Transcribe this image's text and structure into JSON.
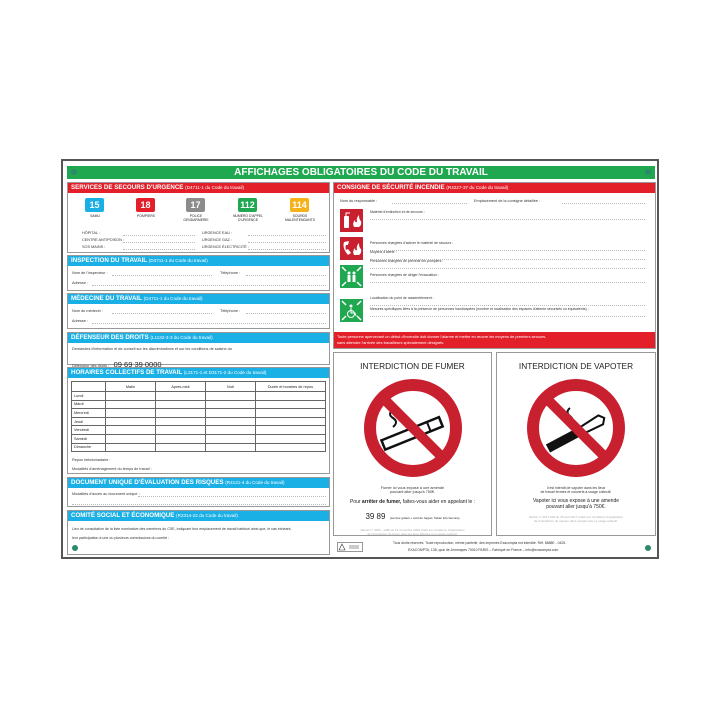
{
  "title": "AFFICHAGES OBLIGATOIRES DU CODE DU TRAVAIL",
  "colors": {
    "green": "#1fa84f",
    "red": "#e3202a",
    "blue": "#1ab0e6",
    "gray": "#8c8c8c",
    "yellow": "#f6b21b",
    "sign_red": "#c8202f"
  },
  "secours": {
    "title": "SERVICES DE SECOURS D'URGENCE",
    "ref": "(D4711-1 du Code du travail)",
    "numbers": [
      {
        "n": "15",
        "label": "SAMU",
        "color": "#1ab0e6"
      },
      {
        "n": "18",
        "label": "POMPIERS",
        "color": "#e3202a"
      },
      {
        "n": "17",
        "label": "POLICE GENDARMERIE",
        "color": "#8c8c8c"
      },
      {
        "n": "112",
        "label": "NUMÉRO D'APPEL D'URGENCE",
        "color": "#1fa84f"
      },
      {
        "n": "114",
        "label": "SOURDS MALENTENDANTS",
        "color": "#f6b21b"
      }
    ],
    "fields_left": [
      "HÔPITAL :",
      "CENTRE ANTIPOISON :",
      "SOS MAINS :"
    ],
    "fields_right": [
      "URGENCE EAU :",
      "URGENCE GAZ :",
      "URGENCE ÉLECTRICITÉ :"
    ]
  },
  "inspection": {
    "title": "INSPECTION DU TRAVAIL",
    "ref": "(D4711-1 du Code du travail)",
    "f1": "Nom de l'inspecteur :",
    "f2": "Téléphone :",
    "f3": "Adresse :"
  },
  "medecine": {
    "title": "MÉDECINE DU TRAVAIL",
    "ref": "(D4711-1 du Code du travail)",
    "f1": "Nom du médecin :",
    "f2": "Téléphone :",
    "f3": "Adresse :"
  },
  "defenseur": {
    "title": "DÉFENSEUR DES DROITS",
    "ref": "(L1132-3-3 du Code du travail)",
    "text": "Demandes d'information et de conseil sur les discriminations et sur les conditions de saisine du",
    "label": "Défenseur des droits :",
    "phone": "09 69 39 0000"
  },
  "horaires": {
    "title": "HORAIRES COLLECTIFS DE TRAVAIL",
    "ref": "(L3171-1 et D3171-2 du Code du travail)",
    "columns": [
      "",
      "Matin",
      "Après-midi",
      "Nuit",
      "Durée et horaires de repos"
    ],
    "days": [
      "Lundi",
      "Mardi",
      "Mercredi",
      "Jeudi",
      "Vendredi",
      "Samedi",
      "Dimanche"
    ],
    "f1": "Repos hebdomadaire :",
    "f2": "Modalités d'aménagement du temps de travail :"
  },
  "duer": {
    "title": "DOCUMENT UNIQUE D'ÉVALUATION DES RISQUES",
    "ref": "(R4121-4 du Code du travail)",
    "f1": "Modalités d'accès au document unique :"
  },
  "cse": {
    "title": "COMITÉ SOCIAL ET ÉCONOMIQUE",
    "ref": "(R2314-22 du Code du travail)",
    "text1": "Lieu de consultation de la liste nominative des membres du CSE, indiquant leur emplacement de travail habituel ainsi que, le cas échéant,",
    "text2": "leur participation à une ou plusieurs commissions du comité :"
  },
  "incendie": {
    "title": "CONSIGNE DE SÉCURITÉ INCENDIE",
    "ref": "(R4227-37 du Code du travail)",
    "f_resp": "Nom du responsable :",
    "f_empl": "Emplacement de la consigne détaillée :",
    "fields": [
      "Matériel d'extinction et de secours :",
      "Personnes chargées d'activer le matériel de secours :",
      "Moyens d'alerte :",
      "Personnes chargées de prévenir les pompiers :",
      "Personnes chargées de diriger l'évacuation :",
      "Localisation du point de rassemblement :",
      "Mesures spécifiques liées à la présence de personnes handicapées (nombre et localisation des espaces d'attente sécurisés ou équivalents) :"
    ],
    "icons": [
      "fire-extinguisher-icon",
      "fire-alarm-phone-icon",
      "assembly-point-icon",
      "disabled-evacuation-icon"
    ],
    "footer1": "Toute personne apercevant un début d'incendie doit donner l'alarme et mettre en œuvre les moyens de premiers secours,",
    "footer2": "sans attendre l'arrivée des travailleurs spécialement désignés."
  },
  "fumer": {
    "title": "INTERDICTION DE FUMER",
    "t1": "Fumer ici vous expose à une amende",
    "t2": "pouvant aller jusqu'à 750€.",
    "t3a": "Pour ",
    "t3b": "arrêter de fumer,",
    "t3c": " faites-vous aider en appelant le :",
    "phone": "39 89",
    "phone_note": "(service gratuit + coût de l'appel, Tabac Info Service)",
    "legal1": "Décret n° 2006 - 1386 du 15 novembre 2006 fixant les conditions d'application",
    "legal2": "de l'interdiction de fumer dans les lieux affectés à un usage collectif."
  },
  "vapoter": {
    "title": "INTERDICTION DE VAPOTER",
    "t1": "Il est interdit de vapoter dans les lieux",
    "t2": "de travail fermés et couverts à usage collectif.",
    "t3": "Vapoter ici vous expose à une amende",
    "t4": "pouvant aller jusqu'à 750€.",
    "legal1": "Décret n° 2017-633 du 25 avril 2017 relatif aux conditions d'application",
    "legal2": "de l'interdiction de vapoter dans certains lieux à usage collectif."
  },
  "footer": {
    "line1": "Tous droits réservés. Toute reproduction, même partielle, des imprimés Exacompta est interdite. Réf. 8688E - 0425.",
    "line2": "EXACOMPTA, 138, quai de Jemmapes 75010 PARIS – Fabriqué en France – info@exacompta.com"
  }
}
